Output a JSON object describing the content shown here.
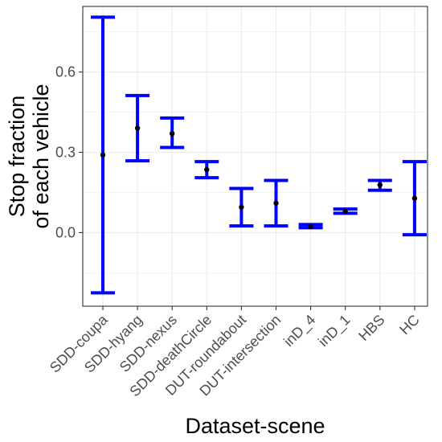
{
  "chart_data": {
    "type": "errorbar",
    "title": "",
    "xlabel": "Dataset-scene",
    "ylabel_lines": [
      "Stop fraction",
      "of each vehicle"
    ],
    "categories": [
      "SDD-coupa",
      "SDD-hyang",
      "SDD-nexus",
      "SDD-deathCircle",
      "DUT-roundabout",
      "DUT-intersection",
      "inD_4",
      "inD_1",
      "HBS",
      "HC"
    ],
    "mean": [
      0.29,
      0.39,
      0.37,
      0.235,
      0.095,
      0.11,
      0.022,
      0.08,
      0.178,
      0.128
    ],
    "lower": [
      -0.225,
      0.268,
      0.318,
      0.205,
      0.025,
      0.025,
      0.018,
      0.072,
      0.158,
      -0.008
    ],
    "upper": [
      0.805,
      0.512,
      0.428,
      0.265,
      0.165,
      0.195,
      0.03,
      0.088,
      0.195,
      0.265
    ],
    "yticks": [
      0.0,
      0.3,
      0.6
    ],
    "ytick_labels": [
      "0.0",
      "0.3",
      "0.6"
    ],
    "ylim": [
      -0.275,
      0.845
    ],
    "grid": true,
    "colors": {
      "errorbar": "#0000ff",
      "point": "#000000",
      "grid": "#ebebeb",
      "panel_border": "#333333"
    }
  }
}
